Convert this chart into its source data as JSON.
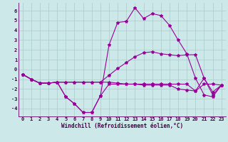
{
  "xlabel": "Windchill (Refroidissement éolien,°C)",
  "background_color": "#cce8e8",
  "grid_color": "#aacccc",
  "line_color": "#990099",
  "spine_color": "#660066",
  "tick_color": "#440044",
  "x": [
    0,
    1,
    2,
    3,
    4,
    5,
    6,
    7,
    8,
    9,
    10,
    11,
    12,
    13,
    14,
    15,
    16,
    17,
    18,
    19,
    20,
    21,
    22,
    23
  ],
  "line1": [
    -0.5,
    -1.0,
    -1.4,
    -1.4,
    -1.3,
    -2.8,
    -3.5,
    -4.4,
    -4.4,
    -2.7,
    -1.5,
    -1.5,
    -1.5,
    -1.5,
    -1.5,
    -1.5,
    -1.5,
    -1.5,
    -1.5,
    -1.5,
    -2.2,
    -1.5,
    -1.5,
    -1.6
  ],
  "line2": [
    -0.5,
    -1.0,
    -1.4,
    -1.4,
    -1.3,
    -2.8,
    -3.5,
    -4.4,
    -4.4,
    -2.7,
    2.5,
    4.8,
    4.9,
    6.3,
    5.2,
    5.7,
    5.5,
    4.5,
    3.0,
    1.6,
    -0.9,
    -2.6,
    -2.8,
    -1.6
  ],
  "line3": [
    -0.5,
    -1.0,
    -1.4,
    -1.4,
    -1.3,
    -1.3,
    -1.3,
    -1.3,
    -1.3,
    -1.3,
    -0.6,
    0.1,
    0.7,
    1.3,
    1.7,
    1.8,
    1.6,
    1.5,
    1.4,
    1.5,
    1.5,
    -0.9,
    -2.6,
    -1.6
  ],
  "line4": [
    -0.5,
    -1.0,
    -1.4,
    -1.4,
    -1.3,
    -1.3,
    -1.3,
    -1.3,
    -1.3,
    -1.3,
    -1.3,
    -1.4,
    -1.5,
    -1.5,
    -1.6,
    -1.6,
    -1.6,
    -1.6,
    -2.0,
    -2.1,
    -2.2,
    -0.9,
    -2.3,
    -1.6
  ],
  "ylim": [
    -4.8,
    6.8
  ],
  "xlim": [
    -0.5,
    23.5
  ],
  "yticks": [
    -4,
    -3,
    -2,
    -1,
    0,
    1,
    2,
    3,
    4,
    5,
    6
  ],
  "xticks": [
    0,
    1,
    2,
    3,
    4,
    5,
    6,
    7,
    8,
    9,
    10,
    11,
    12,
    13,
    14,
    15,
    16,
    17,
    18,
    19,
    20,
    21,
    22,
    23
  ],
  "xlabel_fontsize": 5.5,
  "tick_fontsize": 5.0,
  "linewidth": 0.8,
  "markersize": 3.0
}
